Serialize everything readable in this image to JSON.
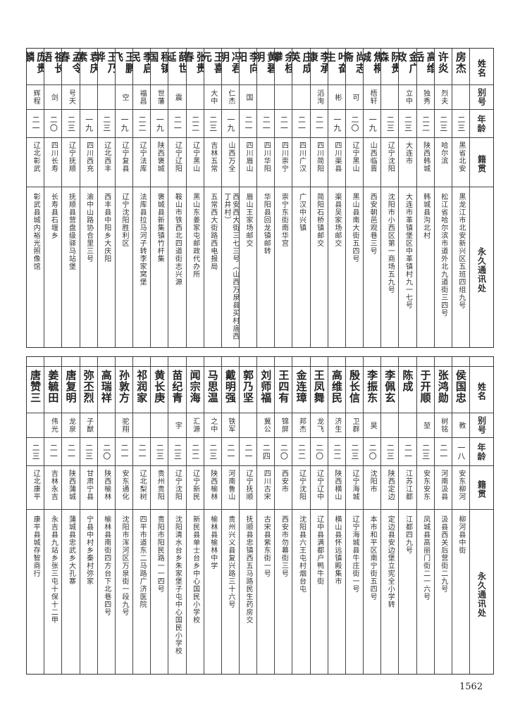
{
  "header": {
    "name": "姓名",
    "alias": "别号",
    "age": "年龄",
    "native": "籍贯",
    "address": "永久通讯处"
  },
  "top_table": {
    "rows": [
      {
        "name": "房杰",
        "alias": "",
        "age": "二三",
        "native": "黑省北安",
        "address": "黑龙江市北安新兴区五班四组九号"
      },
      {
        "name": "许炎",
        "alias": "烈夫",
        "age": "二三",
        "native": "哈尔滨",
        "address": "松江省哈尔滨市道外北九道街三四号"
      },
      {
        "name": "高维岳",
        "alias": "独秀",
        "age": "二二",
        "native": "陕西韩城",
        "address": "韩城县沟北村"
      },
      {
        "name": "金广政",
        "alias": "立中",
        "age": "二三",
        "native": "大连市",
        "address": "大连市革镇堡区中革镇村九一七号"
      },
      {
        "name": "阮贵森",
        "alias": "",
        "age": "二三",
        "native": "辽宁沈阳",
        "address": "沈阳市小西区第一商场五九号"
      },
      {
        "name": "焦桐城",
        "alias": "梧轩",
        "age": "一九",
        "native": "山西临晋",
        "address": "西安朝邑观巷三号"
      },
      {
        "name": "尚志斋",
        "alias": "可",
        "age": "二〇",
        "native": "辽宁黑山",
        "address": "黑山县南大街五四号"
      },
      {
        "name": "叶奋生",
        "alias": "彬",
        "age": "一九",
        "native": "四川渠县",
        "address": "渠县吴家场邮交"
      },
      {
        "name": "李承康",
        "alias": "滔洵",
        "age": "二一",
        "native": "四川简阳",
        "address": "简阳石桥镇邮交"
      },
      {
        "name": "庄成英",
        "alias": "",
        "age": "二一",
        "native": "四川广汉",
        "address": "广汉中兴镇"
      },
      {
        "name": "余桂攀",
        "alias": "",
        "age": "二一",
        "native": "四川崇宁",
        "address": "崇宁东街南华宫"
      },
      {
        "name": "黄碧明",
        "alias": "",
        "age": "二一",
        "native": "四川华阳",
        "address": "华阳县回龙镇邮转"
      },
      {
        "name": "李向阳",
        "alias": "国",
        "age": "二一",
        "native": "四川眉山",
        "address": "眉山王家场邮交"
      },
      {
        "name": "冯君明",
        "alias": "仁杰",
        "age": "一九",
        "native": "山西万全",
        "address": "西安西大街三七三号（山西万泉县买村庙西丁井村）"
      },
      {
        "name": "王喜元",
        "alias": "大中",
        "age": "二三",
        "native": "吉林五常",
        "address": "五常西大街路西电报局"
      },
      {
        "name": "张贵春",
        "alias": "",
        "age": "二二",
        "native": "辽宁黑山",
        "address": "黑山东姜家屯邮政代办所"
      },
      {
        "name": "薛世延",
        "alias": "震",
        "age": "二一",
        "native": "辽宁辽阳",
        "address": "鞍山市铁西北四道街志兴源"
      },
      {
        "name": "程镇国",
        "alias": "世藩",
        "age": "一九",
        "native": "陕西褒城",
        "address": "褒城县新集镇竹杆集"
      },
      {
        "name": "季启民",
        "alias": "福昌",
        "age": "二二",
        "native": "辽宁法库",
        "address": "法库县拉马河子转李家窝堡"
      },
      {
        "name": "王鹏飞",
        "alias": "空",
        "age": "一九",
        "native": "辽宁复县",
        "address": "辽宁沈阳胜利区"
      },
      {
        "name": "王乃骅",
        "alias": "",
        "age": "二三",
        "native": "辽北西丰",
        "address": "西丰县中阳乡大庆阳"
      },
      {
        "name": "袁庆素",
        "alias": "",
        "age": "一九",
        "native": "四川西充",
        "address": "渝中山路协合里三号"
      },
      {
        "name": "孟令春",
        "alias": "号天",
        "age": "二三",
        "native": "辽宁抚顺",
        "address": "抚顺县营盘级驿马站堡"
      },
      {
        "name": "祖长语",
        "alias": "剑",
        "age": "二〇",
        "native": "四川长寿",
        "address": "长寿县石堰乡"
      },
      {
        "name": "庞贵麟",
        "alias": "辉程",
        "age": "二一",
        "native": "辽北彰武",
        "address": "彰武县城内裕光照像馆"
      }
    ]
  },
  "bottom_table": {
    "rows": [
      {
        "name": "侯国忠",
        "alias": "教",
        "age": "一八",
        "native": "安东柳河",
        "address": "柳河县中街"
      },
      {
        "name": "张鸿勋",
        "alias": "树铭",
        "age": "二一",
        "native": "河南汲县",
        "address": "汲县西关后营街二九号"
      },
      {
        "name": "于开顺",
        "alias": "堃",
        "age": "二三",
        "native": "安东安东",
        "address": "凤城县高丽门街二一六号"
      },
      {
        "name": "陈成",
        "alias": "",
        "age": "二一",
        "native": "江苏江都",
        "address": "江都四九号"
      },
      {
        "name": "李佩玄",
        "alias": "",
        "age": "二三",
        "native": "陕西定边",
        "address": "定边县安边堡立宪全小学转"
      },
      {
        "name": "李振东",
        "alias": "昊",
        "age": "二〇",
        "native": "沈阳市",
        "address": "本市和平区南宁街五四号"
      },
      {
        "name": "殷长信",
        "alias": "卫群",
        "age": "二三",
        "native": "辽宁海城",
        "address": "辽宁海城县牛庄街一号"
      },
      {
        "name": "高维民",
        "alias": "济生",
        "age": "二二",
        "native": "陕西横山",
        "address": "横山县怀远镇殿集市"
      },
      {
        "name": "王凤舞",
        "alias": "龙飞",
        "age": "二〇",
        "native": "辽宁辽中",
        "address": "辽中县满都户鸭牛街"
      },
      {
        "name": "金连璋",
        "alias": "邦杰",
        "age": "二二",
        "native": "辽宁沈阳",
        "address": "沈阳县六王屯村烟台屯"
      },
      {
        "name": "王四有",
        "alias": "锦屏",
        "age": "二〇",
        "native": "西安市",
        "address": "西安市勿幕街三号"
      },
      {
        "name": "刘师福",
        "alias": "冀公",
        "age": "二四",
        "native": "四川古宋",
        "address": "古宋县紫东街一号"
      },
      {
        "name": "郭乃坚",
        "alias": "",
        "age": "二一",
        "native": "辽宁抚顺",
        "address": "抚顺县忠镇西五马路民生药房交"
      },
      {
        "name": "戴明强",
        "alias": "铁军",
        "age": "二一",
        "native": "河南鲁山",
        "address": "贵州兴义县复兴路三十六号"
      },
      {
        "name": "马思温",
        "alias": "之中",
        "age": "二三",
        "native": "陕西榆林",
        "address": "榆林县榆林中学"
      },
      {
        "name": "闻宗海",
        "alias": "汇源",
        "age": "二二",
        "native": "辽宁新民",
        "address": "新民县单士台乡中心国民小学校"
      },
      {
        "name": "苗纪青",
        "alias": "宇",
        "age": "二三",
        "native": "辽宁沈阳",
        "address": "沈阳清水台乡朱家堡子屯中心国民小学校"
      },
      {
        "name": "黄长庚",
        "alias": "",
        "age": "二三",
        "native": "贵州贵阳",
        "address": "贵阳市阳民路一一四号"
      },
      {
        "name": "祁润家",
        "alias": "",
        "age": "二一",
        "native": "辽北梨树",
        "address": "四平市道东二马路广济医院"
      },
      {
        "name": "孙敦方",
        "alias": "驼翔",
        "age": "二一",
        "native": "安东通化",
        "address": "沈阳市浑河区万泉街一段九号"
      },
      {
        "name": "高瑞祥",
        "alias": "",
        "age": "二〇",
        "native": "陕西榆林",
        "address": "榆林县南街四方台下北巷四号"
      },
      {
        "name": "弥丕烈",
        "alias": "子猷",
        "age": "二三",
        "native": "甘肃宁县",
        "address": "宁县中村乡秦村弥家"
      },
      {
        "name": "唐复明",
        "alias": "龙泉",
        "age": "二一",
        "native": "陕西蒲城",
        "address": "蒲城县忠武乡大孔寨"
      },
      {
        "name": "姜毓田",
        "alias": "伟光",
        "age": "二一",
        "native": "吉林永吉",
        "address": "永吉县九站乡张三屯十保十二甲"
      },
      {
        "name": "唐赞三",
        "alias": "",
        "age": "二三",
        "native": "辽北康平",
        "address": "康平县城存智商行"
      }
    ]
  },
  "page_number": "1562"
}
